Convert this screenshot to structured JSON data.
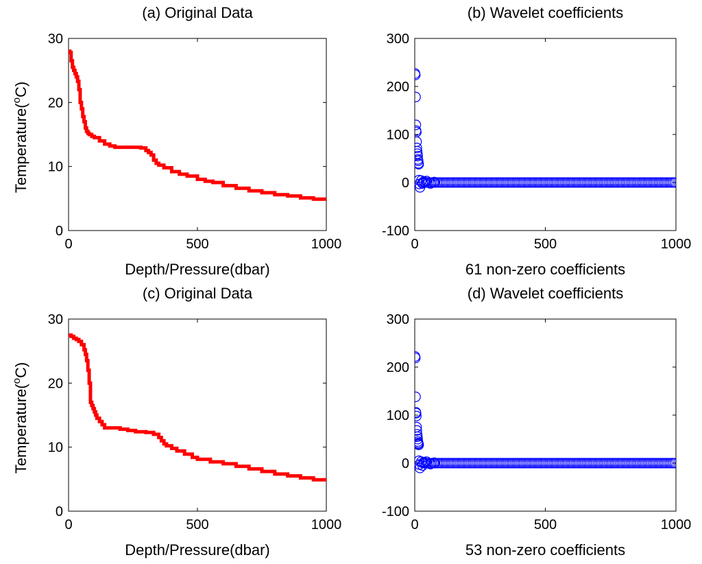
{
  "chart_data": [
    {
      "type": "line",
      "title": "(a) Original Data",
      "xlabel": "Depth/Pressure(dbar)",
      "ylabel_main": "Temperature(",
      "ylabel_sup": "o",
      "ylabel_end": "C)",
      "xlim": [
        0,
        1000
      ],
      "ylim": [
        0,
        30
      ],
      "xticks": [
        0,
        500,
        1000
      ],
      "yticks": [
        0,
        10,
        20,
        30
      ],
      "line_color": "#ff0000",
      "series": [
        {
          "x": [
            0,
            5,
            10,
            15,
            20,
            25,
            30,
            35,
            40,
            45,
            50,
            55,
            60,
            65,
            70,
            75,
            80,
            90,
            100,
            120,
            140,
            160,
            180,
            200,
            220,
            240,
            260,
            280,
            300,
            310,
            320,
            330,
            340,
            350,
            370,
            400,
            430,
            460,
            500,
            530,
            560,
            600,
            650,
            700,
            750,
            800,
            850,
            900,
            950,
            1000
          ],
          "y": [
            28.0,
            27.8,
            26.5,
            25.5,
            25.0,
            24.5,
            24.0,
            23.3,
            22.0,
            20.0,
            19.0,
            17.8,
            17.0,
            16.0,
            15.5,
            15.2,
            15.0,
            14.7,
            14.5,
            14.0,
            13.5,
            13.2,
            13.0,
            13.0,
            13.0,
            13.0,
            13.0,
            12.9,
            12.5,
            12.2,
            11.8,
            11.0,
            10.5,
            10.2,
            9.8,
            9.2,
            8.8,
            8.5,
            8.0,
            7.7,
            7.5,
            7.0,
            6.6,
            6.2,
            5.9,
            5.6,
            5.4,
            5.1,
            4.9,
            4.8
          ]
        }
      ]
    },
    {
      "type": "scatter",
      "title": "(b) Wavelet coefficients",
      "xlabel": "61 non-zero coefficients",
      "xlim": [
        0,
        1000
      ],
      "ylim": [
        -100,
        300
      ],
      "xticks": [
        0,
        500,
        1000
      ],
      "yticks": [
        -100,
        0,
        100,
        200,
        300
      ],
      "marker_color": "#0000ff",
      "points": [
        [
          1,
          227
        ],
        [
          2,
          224
        ],
        [
          3,
          178
        ],
        [
          4,
          120
        ],
        [
          5,
          108
        ],
        [
          6,
          105
        ],
        [
          7,
          85
        ],
        [
          8,
          72
        ],
        [
          9,
          65
        ],
        [
          10,
          60
        ],
        [
          11,
          55
        ],
        [
          12,
          48
        ],
        [
          13,
          45
        ],
        [
          14,
          40
        ],
        [
          15,
          38
        ],
        [
          16,
          5
        ],
        [
          18,
          -3
        ],
        [
          20,
          -10
        ],
        [
          25,
          4
        ],
        [
          30,
          -2
        ],
        [
          35,
          2
        ],
        [
          45,
          3
        ],
        [
          60,
          -2
        ],
        [
          75,
          1
        ]
      ],
      "zero_band": {
        "x_start": 30,
        "x_end": 1000,
        "step": 6,
        "value": 0
      }
    },
    {
      "type": "line",
      "title": "(c) Original Data",
      "xlabel": "Depth/Pressure(dbar)",
      "ylabel_main": "Temperature(",
      "ylabel_sup": "o",
      "ylabel_end": "C)",
      "xlim": [
        0,
        1000
      ],
      "ylim": [
        0,
        30
      ],
      "xticks": [
        0,
        500,
        1000
      ],
      "yticks": [
        0,
        10,
        20,
        30
      ],
      "line_color": "#ff0000",
      "series": [
        {
          "x": [
            0,
            10,
            20,
            30,
            40,
            50,
            60,
            65,
            70,
            75,
            80,
            85,
            90,
            95,
            100,
            105,
            110,
            120,
            130,
            140,
            150,
            170,
            200,
            230,
            260,
            300,
            330,
            350,
            360,
            370,
            380,
            400,
            420,
            450,
            480,
            500,
            550,
            600,
            650,
            700,
            750,
            800,
            850,
            900,
            950,
            1000
          ],
          "y": [
            27.5,
            27.3,
            27.0,
            26.8,
            26.5,
            26.0,
            25.2,
            24.5,
            23.5,
            22.0,
            20.0,
            17.0,
            16.5,
            16.0,
            15.5,
            15.0,
            14.5,
            14.0,
            13.5,
            13.0,
            13.0,
            13.0,
            12.8,
            12.6,
            12.4,
            12.3,
            12.0,
            11.5,
            11.0,
            10.5,
            10.2,
            9.8,
            9.4,
            8.9,
            8.4,
            8.1,
            7.7,
            7.4,
            7.0,
            6.6,
            6.2,
            5.8,
            5.5,
            5.2,
            4.9,
            4.7
          ]
        }
      ]
    },
    {
      "type": "scatter",
      "title": "(d) Wavelet coefficients",
      "xlabel": "53 non-zero coefficients",
      "xlim": [
        0,
        1000
      ],
      "ylim": [
        -100,
        300
      ],
      "xticks": [
        0,
        500,
        1000
      ],
      "yticks": [
        -100,
        0,
        100,
        200,
        300
      ],
      "marker_color": "#0000ff",
      "points": [
        [
          1,
          222
        ],
        [
          2,
          219
        ],
        [
          3,
          138
        ],
        [
          4,
          106
        ],
        [
          5,
          104
        ],
        [
          6,
          98
        ],
        [
          7,
          75
        ],
        [
          8,
          68
        ],
        [
          9,
          60
        ],
        [
          10,
          55
        ],
        [
          11,
          50
        ],
        [
          12,
          45
        ],
        [
          13,
          42
        ],
        [
          14,
          40
        ],
        [
          15,
          38
        ],
        [
          16,
          5
        ],
        [
          18,
          -3
        ],
        [
          20,
          -10
        ],
        [
          25,
          3
        ],
        [
          30,
          -5
        ],
        [
          35,
          2
        ],
        [
          45,
          3
        ],
        [
          60,
          -2
        ],
        [
          75,
          1
        ]
      ],
      "zero_band": {
        "x_start": 30,
        "x_end": 1000,
        "step": 6,
        "value": 0
      }
    }
  ]
}
